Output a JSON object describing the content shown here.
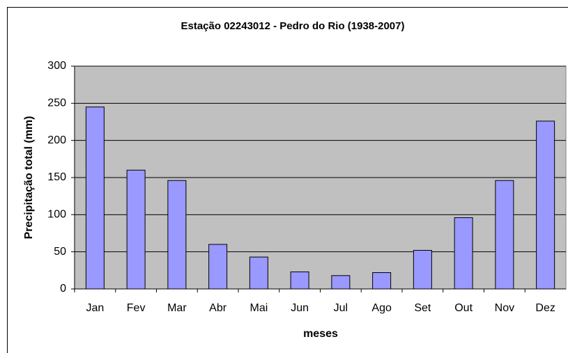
{
  "chart_data": {
    "type": "bar",
    "title": "Estação 02243012 - Pedro do Rio (1938-2007)",
    "x_label": "meses",
    "y_label": "Precipitação total (mm)",
    "categories": [
      "Jan",
      "Fev",
      "Mar",
      "Abr",
      "Mai",
      "Jun",
      "Jul",
      "Ago",
      "Set",
      "Out",
      "Nov",
      "Dez"
    ],
    "values": [
      245,
      160,
      146,
      60,
      43,
      23,
      18,
      22,
      52,
      96,
      146,
      226
    ],
    "color": "#9999ff",
    "ylim": [
      0,
      300
    ],
    "yticks": [
      0,
      50,
      100,
      150,
      200,
      250,
      300
    ],
    "grid": true
  }
}
